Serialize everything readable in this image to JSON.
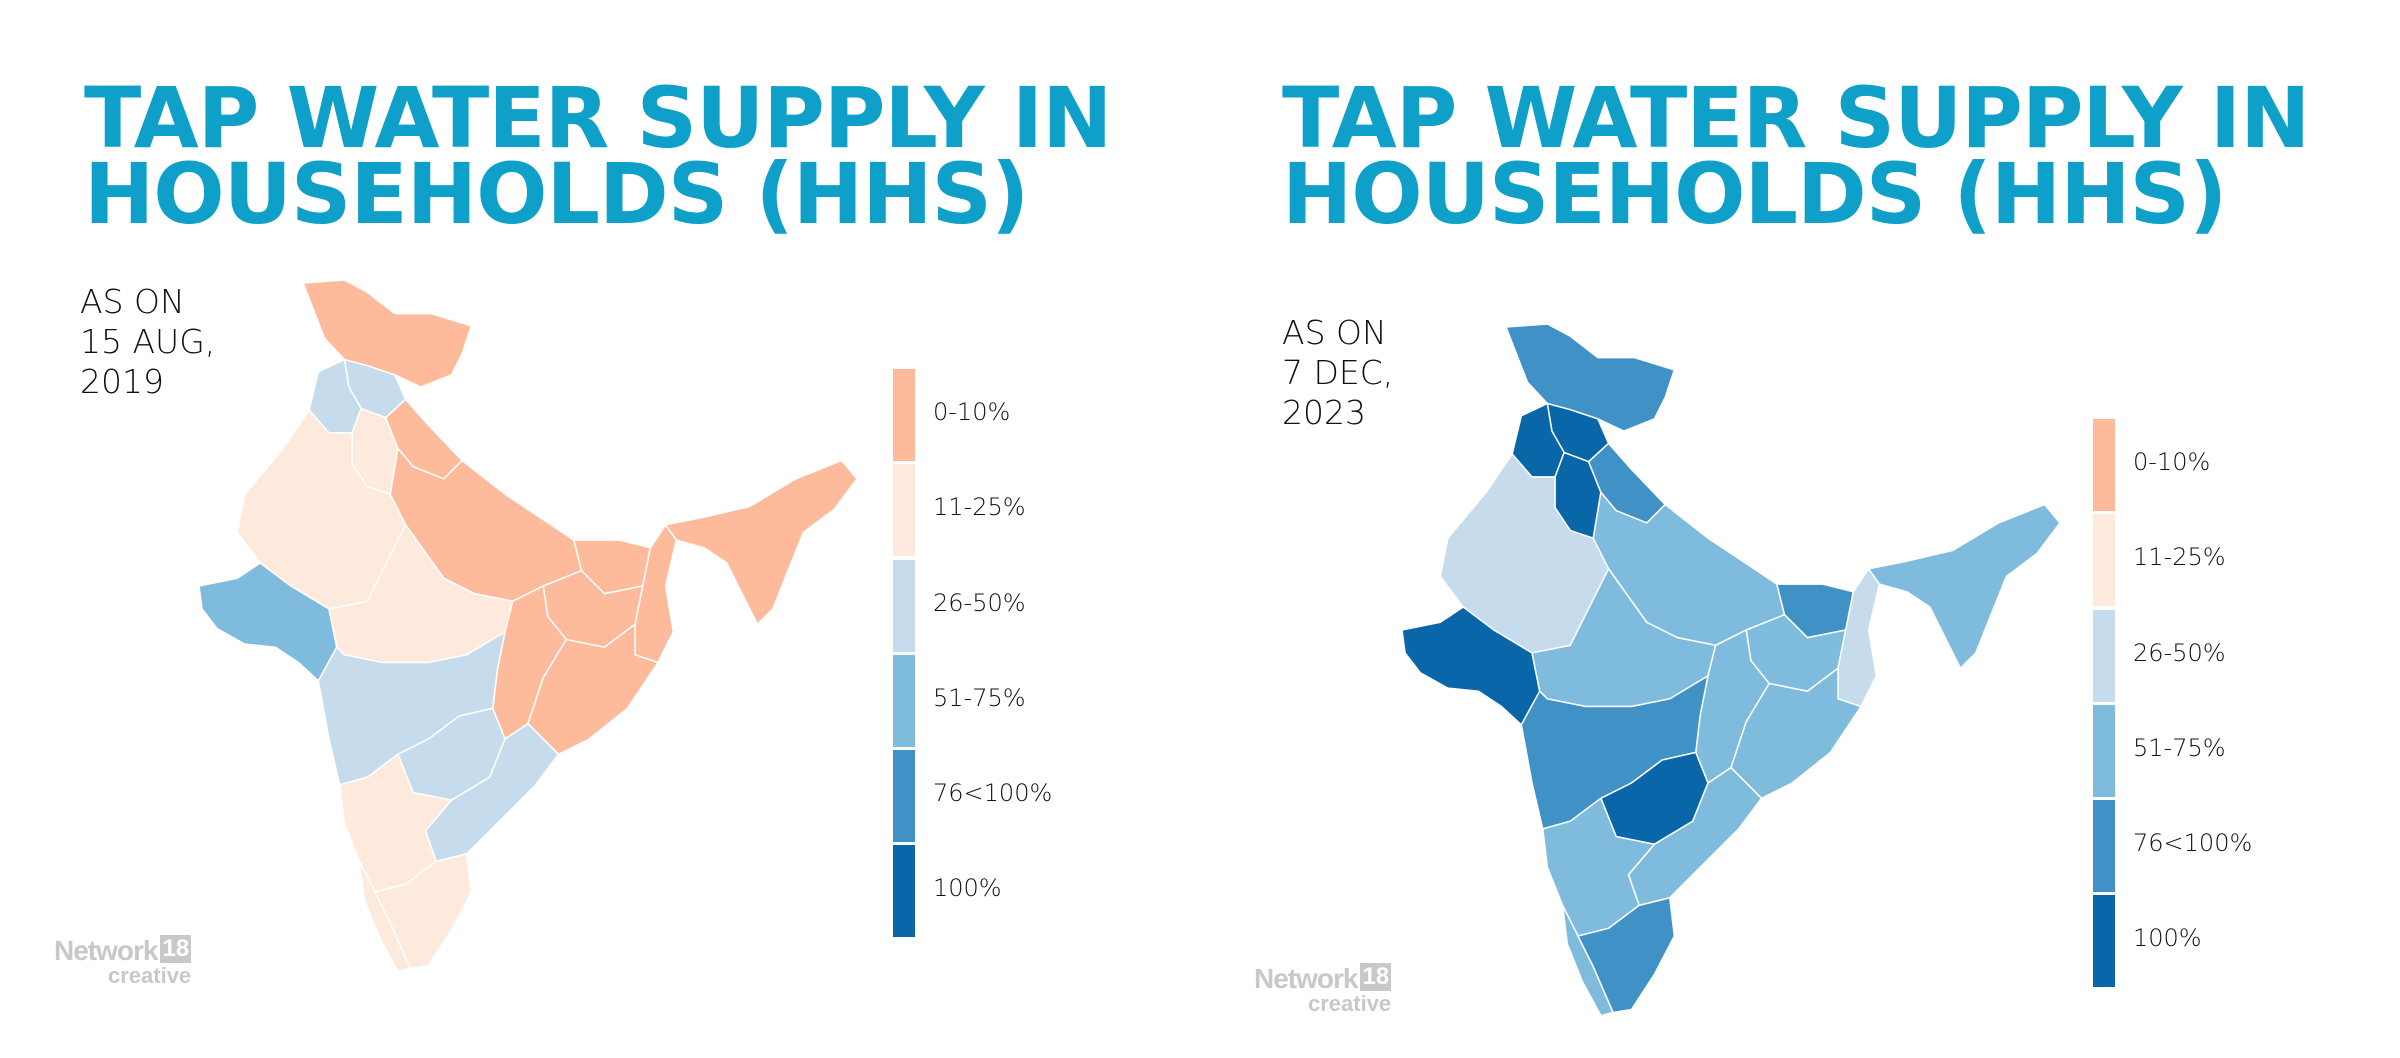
{
  "legend": {
    "labels": [
      "0-10%",
      "11-25%",
      "26-50%",
      "51-75%",
      "76<100%",
      "100%"
    ],
    "colors": [
      "#fdbb9c",
      "#feeadd",
      "#c6dcec",
      "#7fbbdd",
      "#3f91c6",
      "#0966a8"
    ]
  },
  "logo": {
    "name": "Network",
    "badge": "18",
    "sub": "creative"
  },
  "chart_data": [
    {
      "type": "choropleth",
      "title": "TAP WATER SUPPLY IN HOUSEHOLDS (HHS)",
      "date_label": "AS ON\n15 AUG,\n2019",
      "category_index_by_region": {
        "jammu-kashmir-ladakh": 0,
        "himachal": 2,
        "punjab": 2,
        "haryana": 1,
        "uttarakhand": 0,
        "rajasthan": 1,
        "gujarat": 3,
        "uttar-pradesh": 0,
        "madhya-pradesh": 1,
        "bihar": 0,
        "jharkhand": 0,
        "west-bengal": 0,
        "odisha": 0,
        "chhattisgarh": 0,
        "maharashtra": 2,
        "telangana": 2,
        "andhra-pradesh": 2,
        "karnataka": 1,
        "kerala": 1,
        "tamil-nadu": 1,
        "north-east": 0
      }
    },
    {
      "type": "choropleth",
      "title": "TAP WATER SUPPLY IN HOUSEHOLDS (HHS)",
      "date_label": "AS ON\n7 DEC,\n2023",
      "category_index_by_region": {
        "jammu-kashmir-ladakh": 4,
        "himachal": 5,
        "punjab": 5,
        "haryana": 5,
        "uttarakhand": 4,
        "rajasthan": 2,
        "gujarat": 5,
        "uttar-pradesh": 3,
        "madhya-pradesh": 3,
        "bihar": 4,
        "jharkhand": 3,
        "west-bengal": 2,
        "odisha": 3,
        "chhattisgarh": 3,
        "maharashtra": 4,
        "telangana": 5,
        "andhra-pradesh": 3,
        "karnataka": 3,
        "kerala": 3,
        "tamil-nadu": 4,
        "north-east": 3
      }
    }
  ]
}
